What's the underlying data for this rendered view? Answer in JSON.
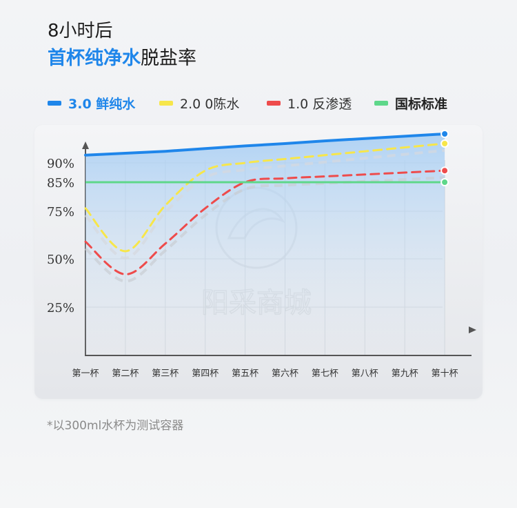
{
  "header": {
    "title_line1": "8小时后",
    "title_line2_highlight": "首杯纯净水",
    "title_line2_rest": "脱盐率"
  },
  "colors": {
    "fresh": "#1f86ea",
    "ro2": "#f7e64a",
    "ro1": "#ee4b4b",
    "standard": "#5ed78a"
  },
  "legend": [
    {
      "label": "3.0 鲜纯水",
      "color": "#1f86ea"
    },
    {
      "label": "2.0 0陈水",
      "color": "#f7e64a"
    },
    {
      "label": "1.0 反渗透",
      "color": "#ee4b4b"
    },
    {
      "label": "国标标准",
      "color": "#5ed78a"
    }
  ],
  "watermark": "阳采商城",
  "footnote": "*以300ml水杯为测试容器",
  "chart_data": {
    "type": "line",
    "categories": [
      "第一杯",
      "第二杯",
      "第三杯",
      "第四杯",
      "第五杯",
      "第六杯",
      "第七杯",
      "第八杯",
      "第九杯",
      "第十杯"
    ],
    "y_tick_labels": [
      "25%",
      "50%",
      "75%",
      "85%",
      "90%"
    ],
    "series": [
      {
        "name": "3.0 鲜纯水",
        "values": [
          92,
          92.5,
          93,
          93.7,
          94.4,
          95,
          95.7,
          96.3,
          96.9,
          97.5
        ]
      },
      {
        "name": "2.0 0陈水",
        "values": [
          76,
          54,
          77,
          88,
          90,
          91,
          92,
          93,
          94,
          95
        ]
      },
      {
        "name": "1.0 反渗透",
        "values": [
          59,
          42,
          58,
          76,
          85,
          86,
          86.5,
          87,
          87.5,
          88
        ]
      },
      {
        "name": "国标标准",
        "values": [
          85,
          85,
          85,
          85,
          85,
          85,
          85,
          85,
          85,
          85
        ]
      }
    ]
  }
}
